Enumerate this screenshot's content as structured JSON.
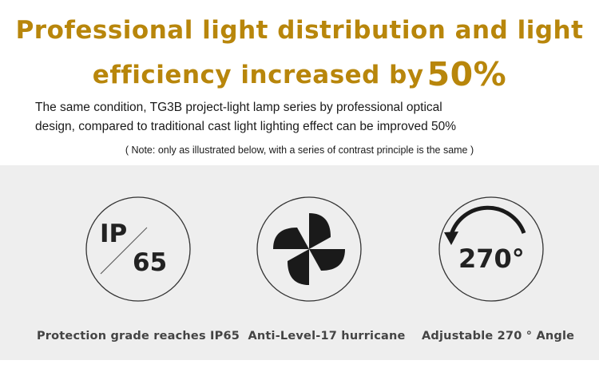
{
  "headline": {
    "line1": "Professional light distribution and light",
    "line2": "efficiency increased by",
    "highlight": "50%"
  },
  "description": {
    "line1": "The same condition, TG3B project-light lamp series by professional optical",
    "line2": "design, compared to traditional cast light lighting effect can be improved 50%"
  },
  "note": "( Note: only as illustrated below, with a series of contrast principle is the same )",
  "features": [
    {
      "icon": "ip65-icon",
      "top": "IP",
      "bottom": "65",
      "caption": "Protection grade reaches IP65"
    },
    {
      "icon": "fan-icon",
      "caption": "Anti-Level-17  hurricane"
    },
    {
      "icon": "rotation-270-icon",
      "value": "270°",
      "caption": "Adjustable 270 ° Angle"
    }
  ],
  "colors": {
    "accent": "#b8860b",
    "band": "#eeeeee",
    "text": "#1a1a1a",
    "caption": "#444444"
  }
}
